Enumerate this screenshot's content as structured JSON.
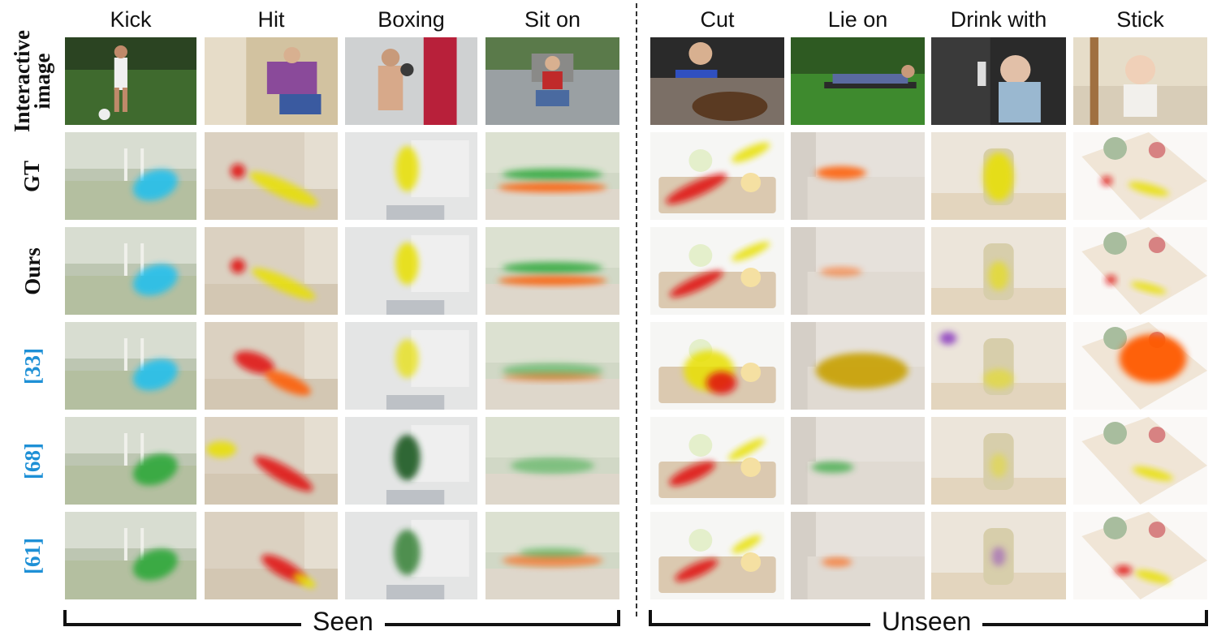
{
  "figure": {
    "column_headers": [
      "Kick",
      "Hit",
      "Boxing",
      "Sit on",
      "Cut",
      "Lie on",
      "Drink with",
      "Stick"
    ],
    "row_labels": [
      {
        "label": "Interactive\nimage",
        "is_reference": false
      },
      {
        "label": "GT",
        "is_reference": false
      },
      {
        "label": "Ours",
        "is_reference": false
      },
      {
        "label": "[33]",
        "is_reference": true
      },
      {
        "label": "[68]",
        "is_reference": true
      },
      {
        "label": "[61]",
        "is_reference": true
      }
    ],
    "group_labels": {
      "seen": "Seen",
      "unseen": "Unseen"
    },
    "colors": {
      "reference_label": "#1e90d6",
      "heat_red": "#e01010",
      "heat_yellow": "#e8e000",
      "heat_green": "#2fa83a",
      "heat_cyan": "#1fc0f0",
      "heat_orange": "#ff5a00"
    }
  }
}
